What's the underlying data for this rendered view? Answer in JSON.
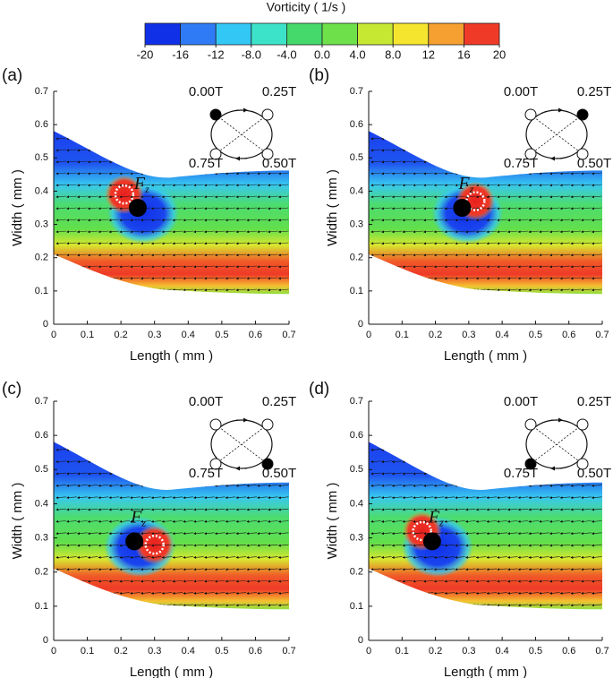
{
  "colorbar": {
    "title": "Vorticity ( 1/s )",
    "lim": [
      -20,
      20
    ],
    "ticks": [
      -20,
      -16,
      -12,
      {
        "value": -8,
        "label": "-8.0"
      },
      {
        "value": -4,
        "label": "-4.0"
      },
      {
        "value": 0,
        "label": "0.0"
      },
      {
        "value": 4,
        "label": "4.0"
      },
      {
        "value": 8,
        "label": "8.0"
      },
      12,
      16,
      20
    ],
    "colors": [
      "#1030e8",
      "#2f7bf5",
      "#33c7f5",
      "#3de3c9",
      "#45d86b",
      "#6ee04a",
      "#c7e833",
      "#f5e52e",
      "#f5a030",
      "#ef3a27"
    ]
  },
  "chart_data": [
    {
      "type": "contour",
      "label": "(a)",
      "xlabel": "Length ( mm )",
      "ylabel": "Width ( mm )",
      "xlim": [
        0,
        0.7
      ],
      "ylim": [
        0,
        0.7
      ],
      "xticks": [
        0,
        0.1,
        0.2,
        0.3,
        0.4,
        0.5,
        0.6,
        0.7
      ],
      "yticks": [
        0,
        0.1,
        0.2,
        0.3,
        0.4,
        0.5,
        0.6,
        0.7
      ],
      "phases": [
        "0.00T",
        "0.25T",
        "0.50T",
        "0.75T"
      ],
      "active_phase": 0,
      "force_label": "F",
      "force_subscript": "z",
      "sphere": {
        "x": 0.25,
        "y": 0.35
      },
      "marker": {
        "x": 0.21,
        "y": 0.39
      }
    },
    {
      "type": "contour",
      "label": "(b)",
      "xlabel": "Length ( mm )",
      "ylabel": "Width ( mm )",
      "xlim": [
        0,
        0.7
      ],
      "ylim": [
        0,
        0.7
      ],
      "xticks": [
        0,
        0.1,
        0.2,
        0.3,
        0.4,
        0.5,
        0.6,
        0.7
      ],
      "yticks": [
        0,
        0.1,
        0.2,
        0.3,
        0.4,
        0.5,
        0.6,
        0.7
      ],
      "phases": [
        "0.00T",
        "0.25T",
        "0.50T",
        "0.75T"
      ],
      "active_phase": 1,
      "force_label": "F",
      "force_subscript": "z",
      "sphere": {
        "x": 0.28,
        "y": 0.35
      },
      "marker": {
        "x": 0.32,
        "y": 0.37
      }
    },
    {
      "type": "contour",
      "label": "(c)",
      "xlabel": "Length ( mm )",
      "ylabel": "Width ( mm )",
      "xlim": [
        0,
        0.7
      ],
      "ylim": [
        0,
        0.7
      ],
      "xticks": [
        0,
        0.1,
        0.2,
        0.3,
        0.4,
        0.5,
        0.6,
        0.7
      ],
      "yticks": [
        0,
        0.1,
        0.2,
        0.3,
        0.4,
        0.5,
        0.6,
        0.7
      ],
      "phases": [
        "0.00T",
        "0.25T",
        "0.50T",
        "0.75T"
      ],
      "active_phase": 2,
      "force_label": "F",
      "force_subscript": "z",
      "sphere": {
        "x": 0.24,
        "y": 0.29
      },
      "marker": {
        "x": 0.3,
        "y": 0.28
      }
    },
    {
      "type": "contour",
      "label": "(d)",
      "xlabel": "Length ( mm )",
      "ylabel": "Width ( mm )",
      "xlim": [
        0,
        0.7
      ],
      "ylim": [
        0,
        0.7
      ],
      "xticks": [
        0,
        0.1,
        0.2,
        0.3,
        0.4,
        0.5,
        0.6,
        0.7
      ],
      "yticks": [
        0,
        0.1,
        0.2,
        0.3,
        0.4,
        0.5,
        0.6,
        0.7
      ],
      "phases": [
        "0.00T",
        "0.25T",
        "0.50T",
        "0.75T"
      ],
      "active_phase": 3,
      "force_label": "F",
      "force_subscript": "z",
      "sphere": {
        "x": 0.19,
        "y": 0.29
      },
      "marker": {
        "x": 0.16,
        "y": 0.32
      }
    }
  ]
}
